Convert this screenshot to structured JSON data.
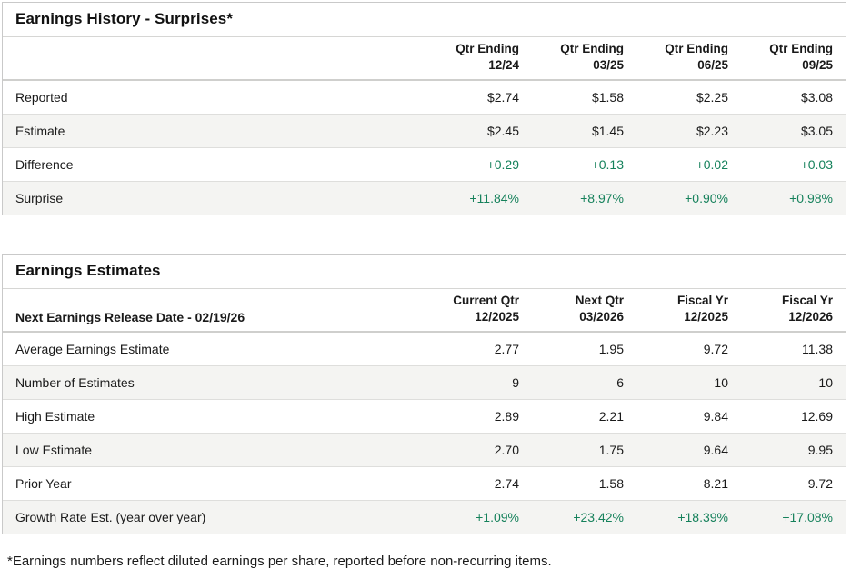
{
  "colors": {
    "positive_green": "#15815b",
    "alt_row_bg": "#f4f4f2",
    "border": "#c9c9c9",
    "text": "#1a1a1a"
  },
  "earnings_history": {
    "title": "Earnings History - Surprises*",
    "columns": [
      {
        "line1": "Qtr Ending",
        "line2": "12/24"
      },
      {
        "line1": "Qtr Ending",
        "line2": "03/25"
      },
      {
        "line1": "Qtr Ending",
        "line2": "06/25"
      },
      {
        "line1": "Qtr Ending",
        "line2": "09/25"
      }
    ],
    "rows": [
      {
        "label": "Reported",
        "values": [
          "$2.74",
          "$1.58",
          "$2.25",
          "$3.08"
        ],
        "positive": false
      },
      {
        "label": "Estimate",
        "values": [
          "$2.45",
          "$1.45",
          "$2.23",
          "$3.05"
        ],
        "positive": false
      },
      {
        "label": "Difference",
        "values": [
          "+0.29",
          "+0.13",
          "+0.02",
          "+0.03"
        ],
        "positive": true
      },
      {
        "label": "Surprise",
        "values": [
          "+11.84%",
          "+8.97%",
          "+0.90%",
          "+0.98%"
        ],
        "positive": true
      }
    ]
  },
  "earnings_estimates": {
    "title": "Earnings Estimates",
    "release_date_label": "Next Earnings Release Date - 02/19/26",
    "columns": [
      {
        "line1": "Current Qtr",
        "line2": "12/2025"
      },
      {
        "line1": "Next Qtr",
        "line2": "03/2026"
      },
      {
        "line1": "Fiscal Yr",
        "line2": "12/2025"
      },
      {
        "line1": "Fiscal Yr",
        "line2": "12/2026"
      }
    ],
    "rows": [
      {
        "label": "Average Earnings Estimate",
        "values": [
          "2.77",
          "1.95",
          "9.72",
          "11.38"
        ],
        "positive": false
      },
      {
        "label": "Number of Estimates",
        "values": [
          "9",
          "6",
          "10",
          "10"
        ],
        "positive": false
      },
      {
        "label": "High Estimate",
        "values": [
          "2.89",
          "2.21",
          "9.84",
          "12.69"
        ],
        "positive": false
      },
      {
        "label": "Low Estimate",
        "values": [
          "2.70",
          "1.75",
          "9.64",
          "9.95"
        ],
        "positive": false
      },
      {
        "label": "Prior Year",
        "values": [
          "2.74",
          "1.58",
          "8.21",
          "9.72"
        ],
        "positive": false
      },
      {
        "label": "Growth Rate Est. (year over year)",
        "values": [
          "+1.09%",
          "+23.42%",
          "+18.39%",
          "+17.08%"
        ],
        "positive": true
      }
    ]
  },
  "footnote": "*Earnings numbers reflect diluted earnings per share, reported before non-recurring items."
}
